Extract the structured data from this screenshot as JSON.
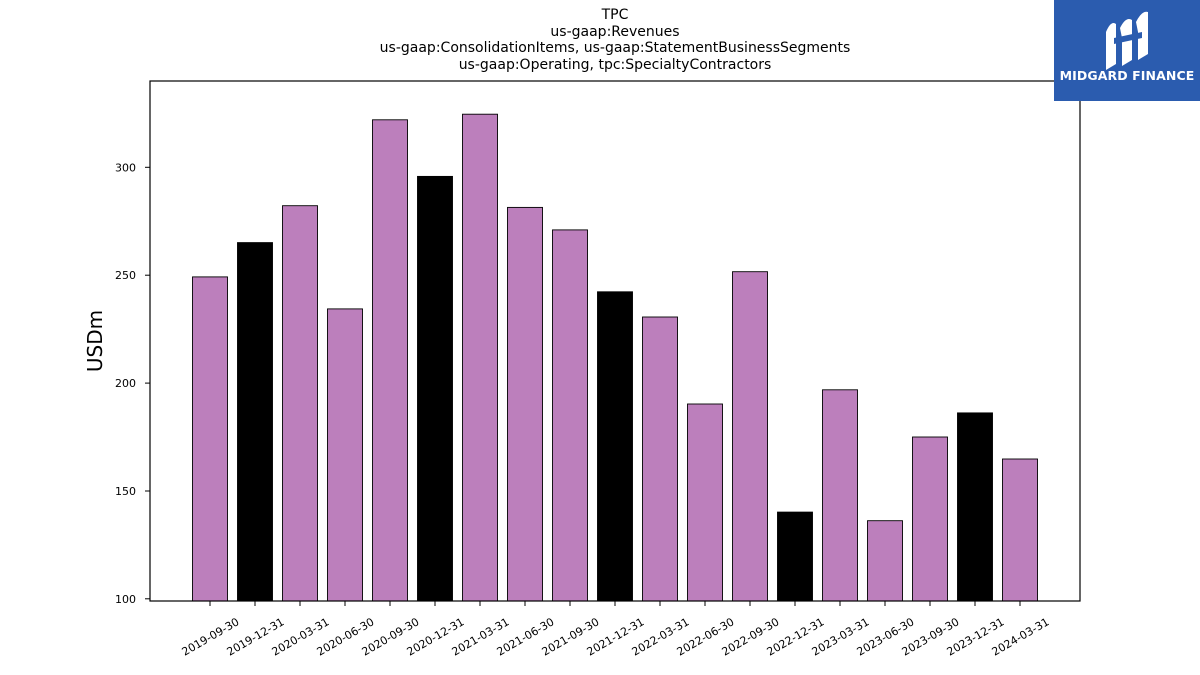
{
  "chart_data": {
    "type": "bar",
    "title_lines": [
      "TPC",
      "us-gaap:Revenues",
      "us-gaap:ConsolidationItems, us-gaap:StatementBusinessSegments",
      "us-gaap:Operating, tpc:SpecialtyContractors"
    ],
    "xlabel": "",
    "ylabel": "USDm",
    "ylim": [
      99,
      340
    ],
    "yticks": [
      100,
      150,
      200,
      250,
      300
    ],
    "categories": [
      "2019-09-30",
      "2019-12-31",
      "2020-03-31",
      "2020-06-30",
      "2020-09-30",
      "2020-12-31",
      "2021-03-31",
      "2021-06-30",
      "2021-09-30",
      "2021-12-31",
      "2022-03-31",
      "2022-06-30",
      "2022-09-30",
      "2022-12-31",
      "2023-03-31",
      "2023-06-30",
      "2023-09-30",
      "2023-12-31",
      "2024-03-31"
    ],
    "values": [
      249.2,
      265.1,
      282.2,
      234.4,
      322.0,
      295.8,
      324.6,
      281.4,
      271.0,
      242.3,
      230.6,
      190.3,
      251.6,
      140.2,
      196.9,
      136.2,
      175.0,
      186.2,
      164.8
    ],
    "bar_colors": [
      "#bc7fbc",
      "#000000",
      "#bc7fbc",
      "#bc7fbc",
      "#bc7fbc",
      "#000000",
      "#bc7fbc",
      "#bc7fbc",
      "#bc7fbc",
      "#000000",
      "#bc7fbc",
      "#bc7fbc",
      "#bc7fbc",
      "#000000",
      "#bc7fbc",
      "#bc7fbc",
      "#bc7fbc",
      "#000000",
      "#bc7fbc"
    ],
    "grid": false,
    "legend": "none"
  },
  "logo": {
    "text": "MIDGARD FINANCE",
    "icon": "midgard-logo-icon",
    "background": "#2b5caf"
  }
}
